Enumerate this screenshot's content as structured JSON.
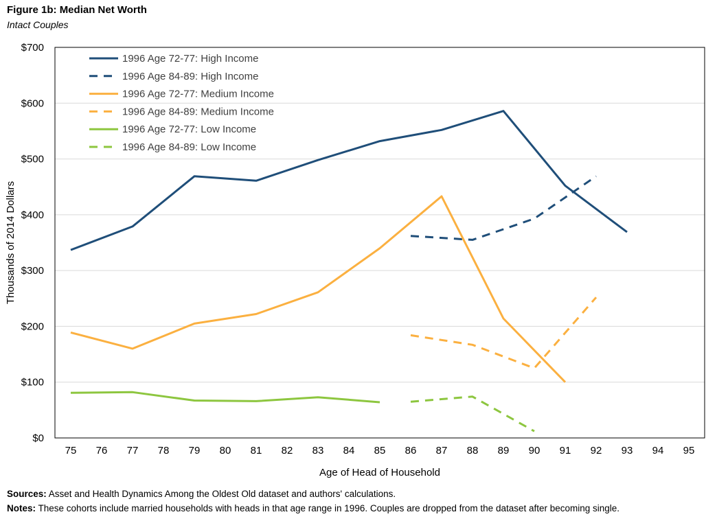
{
  "figure": {
    "label": "Figure 1b:",
    "title": "Median Net Worth",
    "subtitle": "Intact Couples"
  },
  "footer": {
    "sources_label": "Sources:",
    "sources_text": "Asset and Health Dynamics Among the Oldest Old dataset and authors' calculations.",
    "notes_label": "Notes:",
    "notes_text": "These cohorts include married households with heads in that age range in 1996.  Couples are dropped from the dataset after becoming single."
  },
  "chart_data": {
    "type": "line",
    "title": "Median Net Worth",
    "subtitle": "Intact Couples",
    "xlabel": "Age of Head of Household",
    "ylabel": "Thousands of 2014 Dollars",
    "xlim": [
      75,
      95
    ],
    "ylim": [
      0,
      700
    ],
    "x_ticks": [
      75,
      76,
      77,
      78,
      79,
      80,
      81,
      82,
      83,
      84,
      85,
      86,
      87,
      88,
      89,
      90,
      91,
      92,
      93,
      94,
      95
    ],
    "y_ticks": [
      0,
      100,
      200,
      300,
      400,
      500,
      600,
      700
    ],
    "y_tick_labels": [
      "$0",
      "$100",
      "$200",
      "$300",
      "$400",
      "$500",
      "$600",
      "$700"
    ],
    "grid": "horizontal",
    "legend_position": "top-left",
    "series": [
      {
        "name": "1996 Age 72-77: High Income",
        "color": "#1f4e79",
        "dash": "solid",
        "x": [
          75,
          77,
          79,
          81,
          83,
          85,
          87,
          89,
          91,
          93
        ],
        "y": [
          337,
          379,
          469,
          461,
          498,
          532,
          552,
          586,
          452,
          369
        ]
      },
      {
        "name": "1996 Age 84-89: High Income",
        "color": "#1f4e79",
        "dash": "dashed",
        "x": [
          86,
          88,
          90,
          92
        ],
        "y": [
          362,
          355,
          393,
          469
        ]
      },
      {
        "name": "1996 Age 72-77: Medium Income",
        "color": "#fbb040",
        "dash": "solid",
        "x": [
          75,
          77,
          79,
          81,
          83,
          85,
          87,
          89,
          91
        ],
        "y": [
          189,
          160,
          205,
          222,
          261,
          340,
          433,
          214,
          100
        ]
      },
      {
        "name": "1996 Age 84-89: Medium Income",
        "color": "#fbb040",
        "dash": "dashed",
        "x": [
          86,
          88,
          90,
          92
        ],
        "y": [
          184,
          167,
          125,
          252
        ]
      },
      {
        "name": "1996 Age 72-77: Low Income",
        "color": "#8dc63f",
        "dash": "solid",
        "x": [
          75,
          77,
          79,
          81,
          83,
          85
        ],
        "y": [
          81,
          82,
          67,
          66,
          73,
          64
        ]
      },
      {
        "name": "1996 Age 84-89: Low Income",
        "color": "#8dc63f",
        "dash": "dashed",
        "x": [
          86,
          88,
          90
        ],
        "y": [
          65,
          74,
          12
        ]
      }
    ]
  }
}
